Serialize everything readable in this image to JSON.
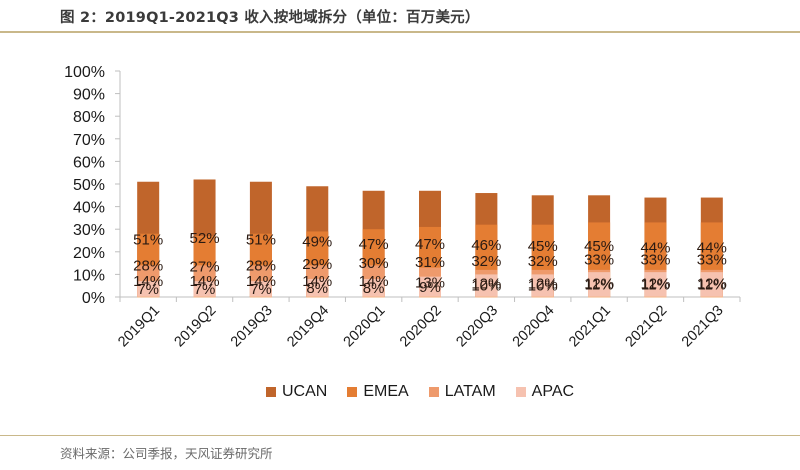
{
  "header": {
    "title": "图 2：2019Q1-2021Q3  收入按地域拆分（单位：百万美元）"
  },
  "footer": {
    "source": "资料来源：公司季报，天风证券研究所"
  },
  "chart_data": {
    "type": "bar",
    "stacked": true,
    "percent_stacked": true,
    "title": "2019Q1-2021Q3 收入按地域拆分（单位：百万美元）",
    "xlabel": "",
    "ylabel": "",
    "ylim": [
      0,
      100
    ],
    "y_ticks": [
      "0%",
      "10%",
      "20%",
      "30%",
      "40%",
      "50%",
      "60%",
      "70%",
      "80%",
      "90%",
      "100%"
    ],
    "grid": false,
    "legend_position": "bottom",
    "categories": [
      "2019Q1",
      "2019Q2",
      "2019Q3",
      "2019Q4",
      "2020Q1",
      "2020Q2",
      "2020Q3",
      "2020Q4",
      "2021Q1",
      "2021Q2",
      "2021Q3"
    ],
    "series": [
      {
        "name": "UCAN",
        "color": "#c0652b",
        "values": [
          51,
          52,
          51,
          49,
          47,
          47,
          46,
          45,
          45,
          44,
          44
        ]
      },
      {
        "name": "EMEA",
        "color": "#e47d33",
        "values": [
          28,
          27,
          28,
          29,
          30,
          31,
          32,
          32,
          33,
          33,
          33
        ]
      },
      {
        "name": "LATAM",
        "color": "#ee9a6c",
        "values": [
          14,
          14,
          14,
          14,
          14,
          13,
          12,
          12,
          12,
          12,
          12
        ]
      },
      {
        "name": "APAC",
        "color": "#f6c2b0",
        "values": [
          7,
          7,
          7,
          8,
          8,
          9,
          10,
          10,
          11,
          11,
          11
        ]
      }
    ]
  }
}
